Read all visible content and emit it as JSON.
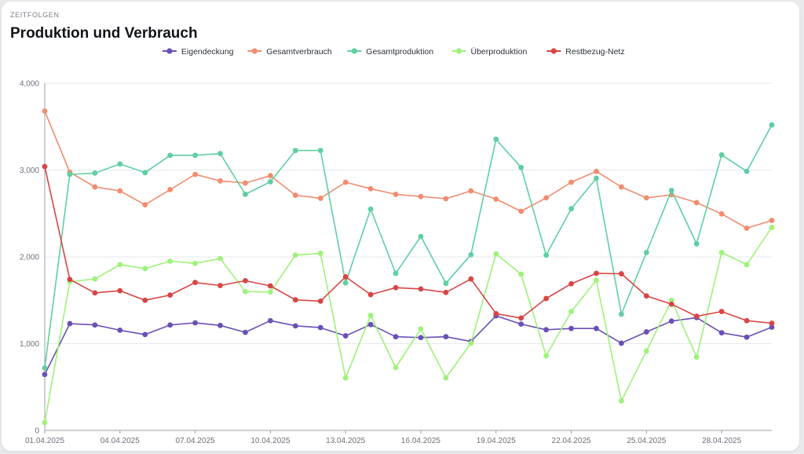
{
  "header": {
    "section_label": "ZEITFOLGEN",
    "title": "Produktion und Verbrauch"
  },
  "chart_data": {
    "type": "line",
    "title": "Produktion und Verbrauch",
    "xlabel": "",
    "ylabel": "",
    "ylim": [
      0,
      4000
    ],
    "y_ticks": [
      0,
      1000,
      2000,
      3000,
      4000
    ],
    "y_tick_labels": [
      "0",
      "1,000",
      "2,000",
      "3,000",
      "4,000"
    ],
    "grid": true,
    "legend_position": "top",
    "x": [
      "01.04.2025",
      "02.04.2025",
      "03.04.2025",
      "04.04.2025",
      "05.04.2025",
      "06.04.2025",
      "07.04.2025",
      "08.04.2025",
      "09.04.2025",
      "10.04.2025",
      "11.04.2025",
      "12.04.2025",
      "13.04.2025",
      "14.04.2025",
      "15.04.2025",
      "16.04.2025",
      "17.04.2025",
      "18.04.2025",
      "19.04.2025",
      "20.04.2025",
      "21.04.2025",
      "22.04.2025",
      "23.04.2025",
      "24.04.2025",
      "25.04.2025",
      "26.04.2025",
      "27.04.2025",
      "28.04.2025",
      "29.04.2025",
      "30.04.2025"
    ],
    "x_tick_labels": [
      "01.04.2025",
      "04.04.2025",
      "07.04.2025",
      "10.04.2025",
      "13.04.2025",
      "16.04.2025",
      "19.04.2025",
      "22.04.2025",
      "25.04.2025",
      "28.04.2025"
    ],
    "series": [
      {
        "name": "Eigendeckung",
        "color": "#6a4fb6",
        "values": [
          645,
          1230,
          1215,
          1155,
          1105,
          1215,
          1240,
          1210,
          1130,
          1265,
          1205,
          1185,
          1090,
          1220,
          1080,
          1070,
          1080,
          1025,
          1320,
          1225,
          1160,
          1175,
          1175,
          1005,
          1135,
          1260,
          1300,
          1125,
          1075,
          1190
        ]
      },
      {
        "name": "Gesamtverbrauch",
        "color": "#f28c6f",
        "values": [
          3680,
          2975,
          2805,
          2760,
          2600,
          2775,
          2950,
          2875,
          2850,
          2935,
          2710,
          2675,
          2860,
          2785,
          2720,
          2695,
          2670,
          2760,
          2665,
          2525,
          2680,
          2860,
          2985,
          2805,
          2680,
          2715,
          2625,
          2495,
          2330,
          2420
        ]
      },
      {
        "name": "Gesamtproduktion",
        "color": "#5ecfa2",
        "values": [
          720,
          2950,
          2965,
          3070,
          2970,
          3170,
          3170,
          3190,
          2720,
          2865,
          3225,
          3225,
          1700,
          2550,
          1810,
          2235,
          1695,
          2025,
          3355,
          3030,
          2020,
          2555,
          2905,
          1340,
          2050,
          2765,
          2150,
          3175,
          2985,
          3520
        ]
      },
      {
        "name": "Überproduktion",
        "color": "#9ef27a",
        "values": [
          90,
          1715,
          1745,
          1910,
          1865,
          1950,
          1925,
          1980,
          1600,
          1595,
          2020,
          2040,
          605,
          1325,
          725,
          1170,
          605,
          1005,
          2035,
          1800,
          860,
          1370,
          1730,
          340,
          915,
          1500,
          845,
          2050,
          1910,
          2340
        ]
      },
      {
        "name": "Restbezug-Netz",
        "color": "#d84545",
        "values": [
          3040,
          1740,
          1585,
          1610,
          1500,
          1560,
          1705,
          1670,
          1725,
          1665,
          1505,
          1490,
          1770,
          1565,
          1645,
          1630,
          1590,
          1745,
          1345,
          1295,
          1520,
          1690,
          1810,
          1805,
          1550,
          1455,
          1315,
          1370,
          1265,
          1235
        ]
      }
    ]
  }
}
